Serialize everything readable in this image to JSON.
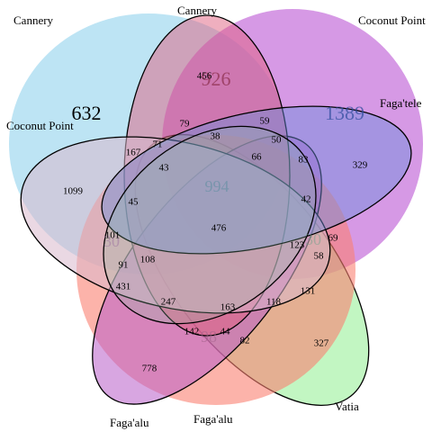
{
  "sets": [
    {
      "id": "cannery_outer",
      "label": "Cannery",
      "color": "#87CEEB"
    },
    {
      "id": "coconut_outer",
      "label": "Coconut Point",
      "color": "#BA55D3"
    },
    {
      "id": "vatia",
      "label": "Vatia",
      "color": "#90EE90"
    },
    {
      "id": "fagaalu_outer",
      "label": "Faga'alu",
      "color": "#FA8072"
    },
    {
      "id": "faga_tele",
      "label": "Faga'tele",
      "color": "#6A8FDC"
    },
    {
      "id": "cannery_inner",
      "label": "Cannery",
      "color": "#E06080"
    },
    {
      "id": "coconut_inner",
      "label": "Coconut Point",
      "color": "#D8B8CC"
    },
    {
      "id": "fagaalu_inner",
      "label": "Faga'alu",
      "color": "#B85CC8"
    }
  ],
  "big_numbers": {
    "n632": "632",
    "n926": "926",
    "n1389": "1389",
    "n994": "994",
    "n30x_left": "30",
    "n30x_right": "30",
    "n98": "98"
  },
  "counts": {
    "c456": "456",
    "c79": "79",
    "c59": "59",
    "c167": "167",
    "c71": "71",
    "c38": "38",
    "c50": "50",
    "c329": "329",
    "c43": "43",
    "c66": "66",
    "c83": "83",
    "c1099": "1099",
    "c45": "45",
    "c42": "42",
    "c476": "476",
    "c101": "101",
    "c123": "123",
    "c69": "69",
    "c58": "58",
    "c91": "91",
    "c108": "108",
    "c431": "431",
    "c131": "131",
    "c247": "247",
    "c163": "163",
    "c118": "118",
    "c142": "142",
    "c44": "44",
    "c82": "82",
    "c327": "327",
    "c778": "778"
  }
}
